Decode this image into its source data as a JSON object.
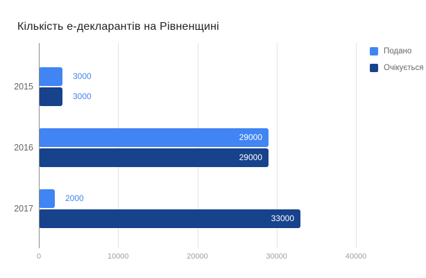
{
  "chart_data": {
    "type": "bar",
    "orientation": "horizontal",
    "title": "Кількість е-декларантів на Рівненщині",
    "categories": [
      "2015",
      "2016",
      "2017"
    ],
    "series": [
      {
        "name": "Подано",
        "color": "#4184f3",
        "values": [
          3000,
          29000,
          2000
        ]
      },
      {
        "name": "Очікується",
        "color": "#17428c",
        "values": [
          3000,
          29000,
          33000
        ]
      }
    ],
    "x_ticks": [
      "0",
      "10000",
      "20000",
      "30000",
      "40000"
    ],
    "x_tick_values": [
      0,
      10000,
      20000,
      30000,
      40000
    ],
    "xlim": [
      0,
      42800
    ],
    "grid": true,
    "legend_position": "top-right",
    "value_labels": {
      "inside_color": "#ffffff",
      "outside_color": "#4184f3"
    },
    "axis_colors": {
      "baseline": "#8a8a8a",
      "gridline": "#e3e3e3",
      "tick_label": "#9e9e9e",
      "category_label": "#5f6368"
    }
  }
}
